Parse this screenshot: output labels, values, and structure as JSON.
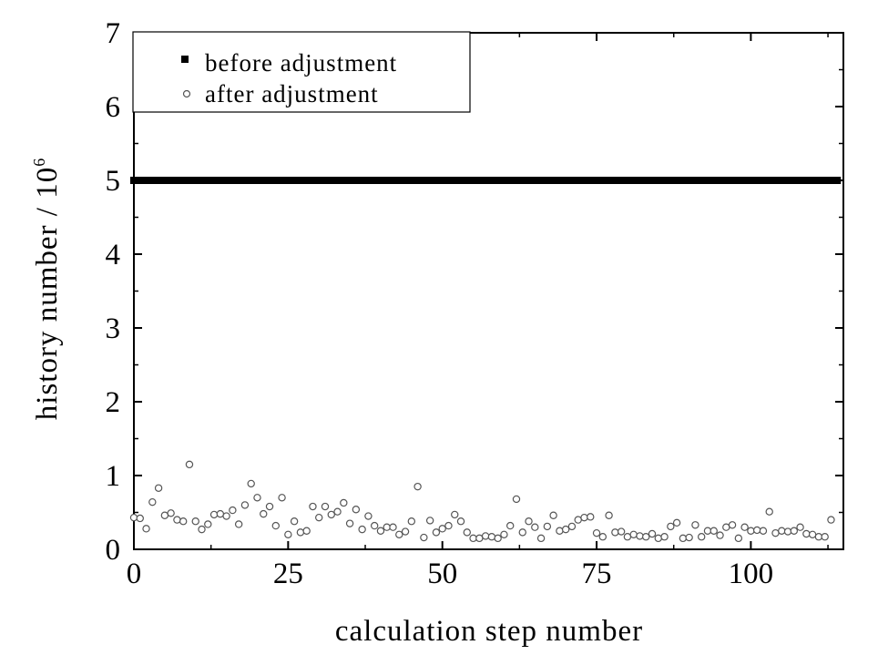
{
  "chart_data": {
    "type": "scatter",
    "xlabel": "calculation step number",
    "ylabel": "history number / 10",
    "ylabel_superscript": "6",
    "xlim": [
      0,
      115
    ],
    "ylim": [
      0,
      7
    ],
    "xticks": [
      0,
      25,
      50,
      75,
      100
    ],
    "yticks": [
      0,
      1,
      2,
      3,
      4,
      5,
      6,
      7
    ],
    "grid": false,
    "legend_position": "top-left",
    "series": [
      {
        "name": "before adjustment",
        "marker": "filled-square",
        "color": "#000000",
        "x_start": 0,
        "x_end": 114,
        "value": 5.0
      },
      {
        "name": "after adjustment",
        "marker": "open-circle",
        "color": "#555555",
        "x": [
          0,
          1,
          2,
          3,
          4,
          5,
          6,
          7,
          8,
          9,
          10,
          11,
          12,
          13,
          14,
          15,
          16,
          17,
          18,
          19,
          20,
          21,
          22,
          23,
          24,
          25,
          26,
          27,
          28,
          29,
          30,
          31,
          32,
          33,
          34,
          35,
          36,
          37,
          38,
          39,
          40,
          41,
          42,
          43,
          44,
          45,
          46,
          47,
          48,
          49,
          50,
          51,
          52,
          53,
          54,
          55,
          56,
          57,
          58,
          59,
          60,
          61,
          62,
          63,
          64,
          65,
          66,
          67,
          68,
          69,
          70,
          71,
          72,
          73,
          74,
          75,
          76,
          77,
          78,
          79,
          80,
          81,
          82,
          83,
          84,
          85,
          86,
          87,
          88,
          89,
          90,
          91,
          92,
          93,
          94,
          95,
          96,
          97,
          98,
          99,
          100,
          101,
          102,
          103,
          104,
          105,
          106,
          107,
          108,
          109,
          110,
          111,
          112,
          113
        ],
        "y": [
          0.43,
          0.42,
          0.28,
          0.64,
          0.83,
          0.46,
          0.49,
          0.4,
          0.38,
          1.15,
          0.38,
          0.27,
          0.34,
          0.47,
          0.48,
          0.45,
          0.53,
          0.34,
          0.6,
          0.89,
          0.7,
          0.48,
          0.58,
          0.32,
          0.7,
          0.2,
          0.38,
          0.23,
          0.25,
          0.58,
          0.43,
          0.58,
          0.47,
          0.51,
          0.63,
          0.35,
          0.54,
          0.27,
          0.45,
          0.32,
          0.25,
          0.3,
          0.3,
          0.2,
          0.24,
          0.38,
          0.85,
          0.16,
          0.39,
          0.23,
          0.28,
          0.32,
          0.47,
          0.38,
          0.23,
          0.15,
          0.15,
          0.18,
          0.17,
          0.15,
          0.2,
          0.32,
          0.68,
          0.23,
          0.38,
          0.3,
          0.15,
          0.31,
          0.46,
          0.25,
          0.27,
          0.31,
          0.4,
          0.43,
          0.44,
          0.22,
          0.17,
          0.46,
          0.23,
          0.24,
          0.17,
          0.2,
          0.18,
          0.17,
          0.21,
          0.15,
          0.17,
          0.31,
          0.36,
          0.15,
          0.16,
          0.33,
          0.17,
          0.25,
          0.25,
          0.19,
          0.3,
          0.33,
          0.15,
          0.3,
          0.25,
          0.26,
          0.25,
          0.51,
          0.22,
          0.25,
          0.24,
          0.25,
          0.3,
          0.21,
          0.2,
          0.17,
          0.17,
          0.4
        ]
      }
    ]
  }
}
